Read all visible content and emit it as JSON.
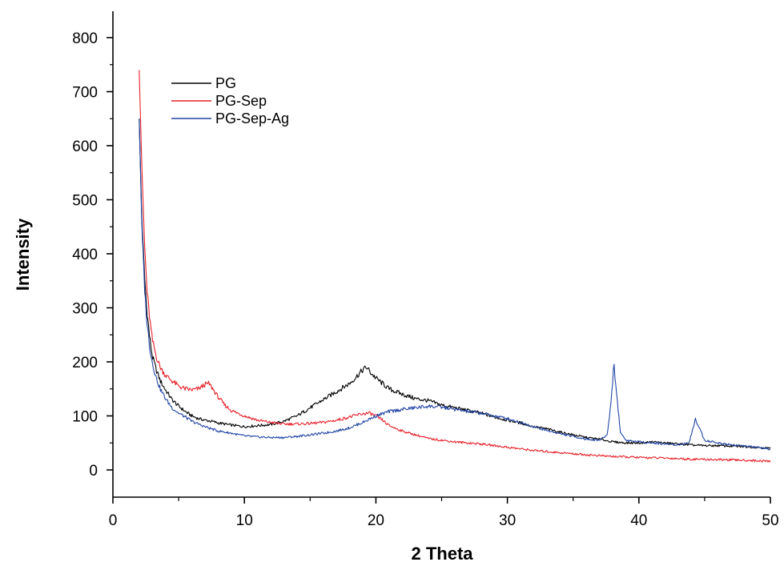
{
  "chart_data": {
    "type": "line",
    "title": "",
    "xlabel": "2 Theta",
    "ylabel": "Intensity",
    "xlim": [
      0,
      50
    ],
    "ylim": [
      -50,
      860
    ],
    "x_ticks": [
      0,
      10,
      20,
      30,
      40,
      50
    ],
    "y_ticks": [
      0,
      100,
      200,
      300,
      400,
      500,
      600,
      700,
      800
    ],
    "grid": false,
    "legend_position": "top-left",
    "series": [
      {
        "name": "PG",
        "color": "#000000",
        "x": [
          2.0,
          2.2,
          2.4,
          2.6,
          2.8,
          3.0,
          3.3,
          3.6,
          4.0,
          4.5,
          5.0,
          5.5,
          6.0,
          6.5,
          7.0,
          7.5,
          8.0,
          9.0,
          10.0,
          11.0,
          12.0,
          13.0,
          14.0,
          15.0,
          16.0,
          17.0,
          18.0,
          18.5,
          19.0,
          19.3,
          19.6,
          20.0,
          20.5,
          21.0,
          22.0,
          23.0,
          24.0,
          25.0,
          26.0,
          27.0,
          28.0,
          29.0,
          30.0,
          31.0,
          32.0,
          33.0,
          34.0,
          35.0,
          36.0,
          37.0,
          38.0,
          39.0,
          40.0,
          41.0,
          42.0,
          43.0,
          44.0,
          45.0,
          46.0,
          47.0,
          48.0,
          49.0,
          50.0
        ],
        "y": [
          650,
          460,
          360,
          290,
          245,
          210,
          185,
          165,
          148,
          130,
          118,
          108,
          100,
          95,
          92,
          90,
          87,
          83,
          80,
          82,
          84,
          90,
          100,
          115,
          130,
          145,
          160,
          172,
          185,
          190,
          180,
          170,
          160,
          150,
          140,
          132,
          128,
          120,
          115,
          110,
          105,
          98,
          92,
          87,
          80,
          76,
          70,
          65,
          60,
          57,
          52,
          50,
          50,
          52,
          50,
          48,
          46,
          45,
          45,
          44,
          43,
          42,
          40
        ]
      },
      {
        "name": "PG-Sep",
        "color": "#e8202a",
        "x": [
          2.0,
          2.2,
          2.4,
          2.6,
          2.8,
          3.0,
          3.3,
          3.6,
          4.0,
          4.5,
          5.0,
          5.5,
          6.0,
          6.5,
          7.0,
          7.3,
          7.6,
          8.0,
          8.5,
          9.0,
          10.0,
          11.0,
          12.0,
          13.0,
          14.0,
          15.0,
          16.0,
          17.0,
          18.0,
          19.0,
          19.5,
          20.0,
          20.5,
          21.0,
          22.0,
          23.0,
          24.0,
          25.0,
          26.0,
          27.0,
          28.0,
          29.0,
          30.0,
          32.0,
          34.0,
          36.0,
          38.0,
          40.0,
          42.0,
          44.0,
          46.0,
          48.0,
          50.0
        ],
        "y": [
          740,
          560,
          420,
          330,
          280,
          240,
          210,
          190,
          175,
          165,
          155,
          150,
          148,
          150,
          158,
          160,
          150,
          135,
          120,
          110,
          100,
          92,
          88,
          85,
          85,
          86,
          88,
          92,
          98,
          104,
          105,
          100,
          92,
          82,
          72,
          65,
          58,
          55,
          52,
          50,
          48,
          45,
          42,
          36,
          32,
          28,
          25,
          23,
          22,
          20,
          19,
          18,
          16
        ]
      },
      {
        "name": "PG-Sep-Ag",
        "color": "#2246a6",
        "x": [
          2.0,
          2.2,
          2.4,
          2.6,
          2.8,
          3.0,
          3.3,
          3.6,
          4.0,
          4.5,
          5.0,
          5.5,
          6.0,
          7.0,
          8.0,
          9.0,
          10.0,
          11.0,
          12.0,
          13.0,
          14.0,
          15.0,
          16.0,
          17.0,
          18.0,
          19.0,
          20.0,
          21.0,
          22.0,
          23.0,
          24.0,
          25.0,
          26.0,
          27.0,
          28.0,
          29.0,
          30.0,
          31.0,
          32.0,
          33.0,
          34.0,
          35.0,
          36.0,
          37.0,
          37.6,
          37.9,
          38.1,
          38.3,
          38.6,
          39.0,
          40.0,
          41.0,
          42.0,
          43.0,
          43.8,
          44.1,
          44.3,
          44.6,
          45.0,
          46.0,
          47.0,
          48.0,
          49.0,
          50.0
        ],
        "y": [
          650,
          450,
          340,
          270,
          228,
          198,
          170,
          150,
          132,
          115,
          105,
          98,
          90,
          80,
          72,
          68,
          63,
          61,
          60,
          60,
          62,
          65,
          68,
          72,
          78,
          88,
          100,
          108,
          112,
          115,
          118,
          116,
          112,
          108,
          105,
          100,
          95,
          88,
          80,
          73,
          67,
          62,
          57,
          55,
          65,
          130,
          198,
          140,
          70,
          55,
          52,
          50,
          48,
          47,
          50,
          75,
          94,
          78,
          55,
          50,
          47,
          44,
          42,
          38
        ]
      }
    ]
  }
}
